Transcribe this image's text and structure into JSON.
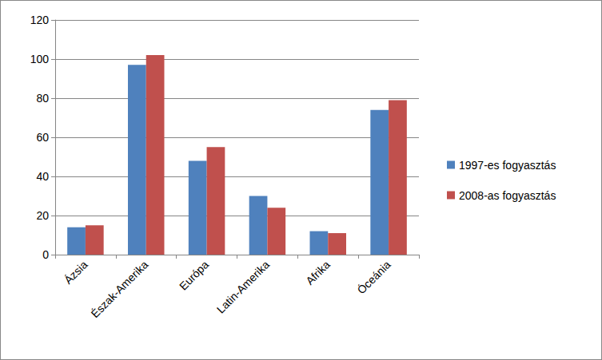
{
  "chart_data": {
    "type": "bar",
    "categories": [
      "Ázsia",
      "Észak-Amerika",
      "Európa",
      "Latin-Amerika",
      "Afrika",
      "Óceánia"
    ],
    "series": [
      {
        "name": "1997-es fogyasztás",
        "color": "#4f81bd",
        "values": [
          14,
          97,
          48,
          30,
          12,
          74
        ]
      },
      {
        "name": "2008-as fogyasztás",
        "color": "#c0504d",
        "values": [
          15,
          102,
          55,
          24,
          11,
          79
        ]
      }
    ],
    "ylim": [
      0,
      120
    ],
    "yticks": [
      0,
      20,
      40,
      60,
      80,
      100,
      120
    ],
    "grid": true,
    "legend": "right"
  }
}
